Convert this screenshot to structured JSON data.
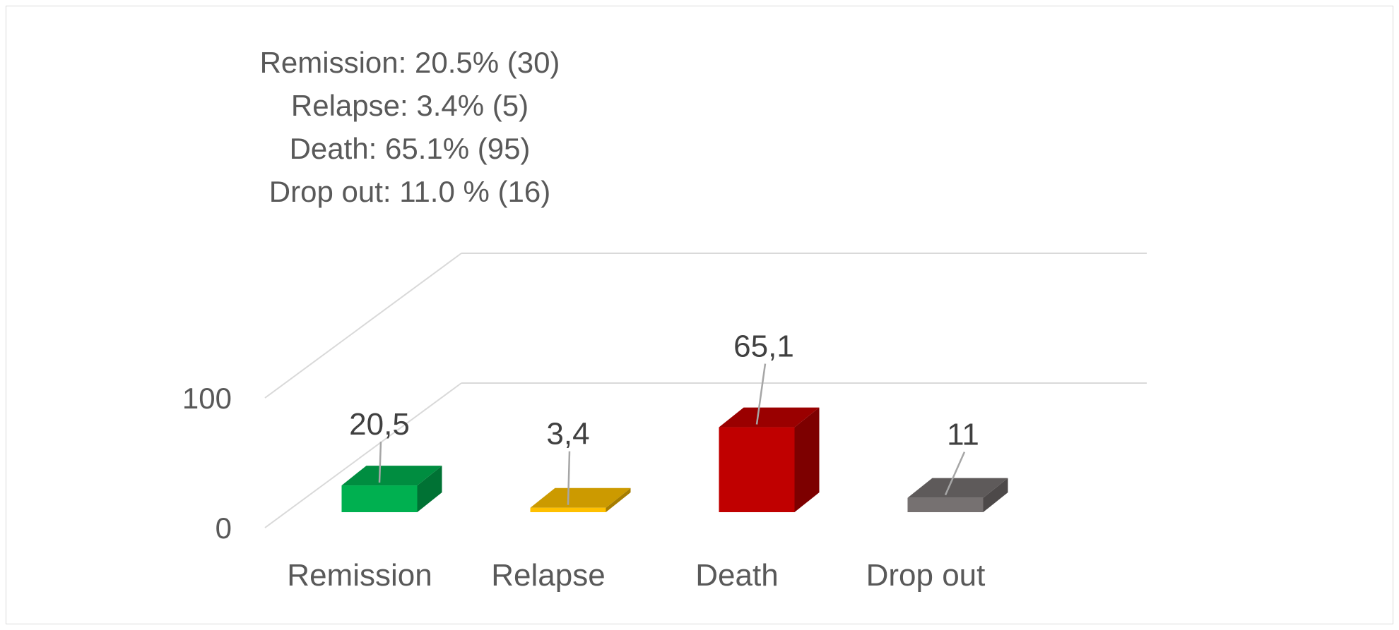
{
  "summary": {
    "lines": [
      "Remission: 20.5% (30)",
      "Relapse: 3.4% (5)",
      "Death: 65.1% (95)",
      "Drop out: 11.0 % (16)"
    ]
  },
  "chart_data": {
    "type": "bar",
    "style": "3d-column",
    "categories": [
      "Remission",
      "Relapse",
      "Death",
      "Drop out"
    ],
    "values": [
      20.5,
      3.4,
      65.1,
      11
    ],
    "data_labels": [
      "20,5",
      "3,4",
      "65,1",
      "11"
    ],
    "y_ticks": [
      "0",
      "100"
    ],
    "ylim": [
      0,
      100
    ],
    "grid": true,
    "legend": "none",
    "colors": {
      "Remission": "#00b050",
      "Relapse": "#ffc000",
      "Death": "#c00000",
      "Drop out": "#767171"
    }
  },
  "colors": {
    "text": "#595959",
    "label_text": "#404040",
    "grid": "#d9d9d9",
    "leader": "#a6a6a6"
  }
}
